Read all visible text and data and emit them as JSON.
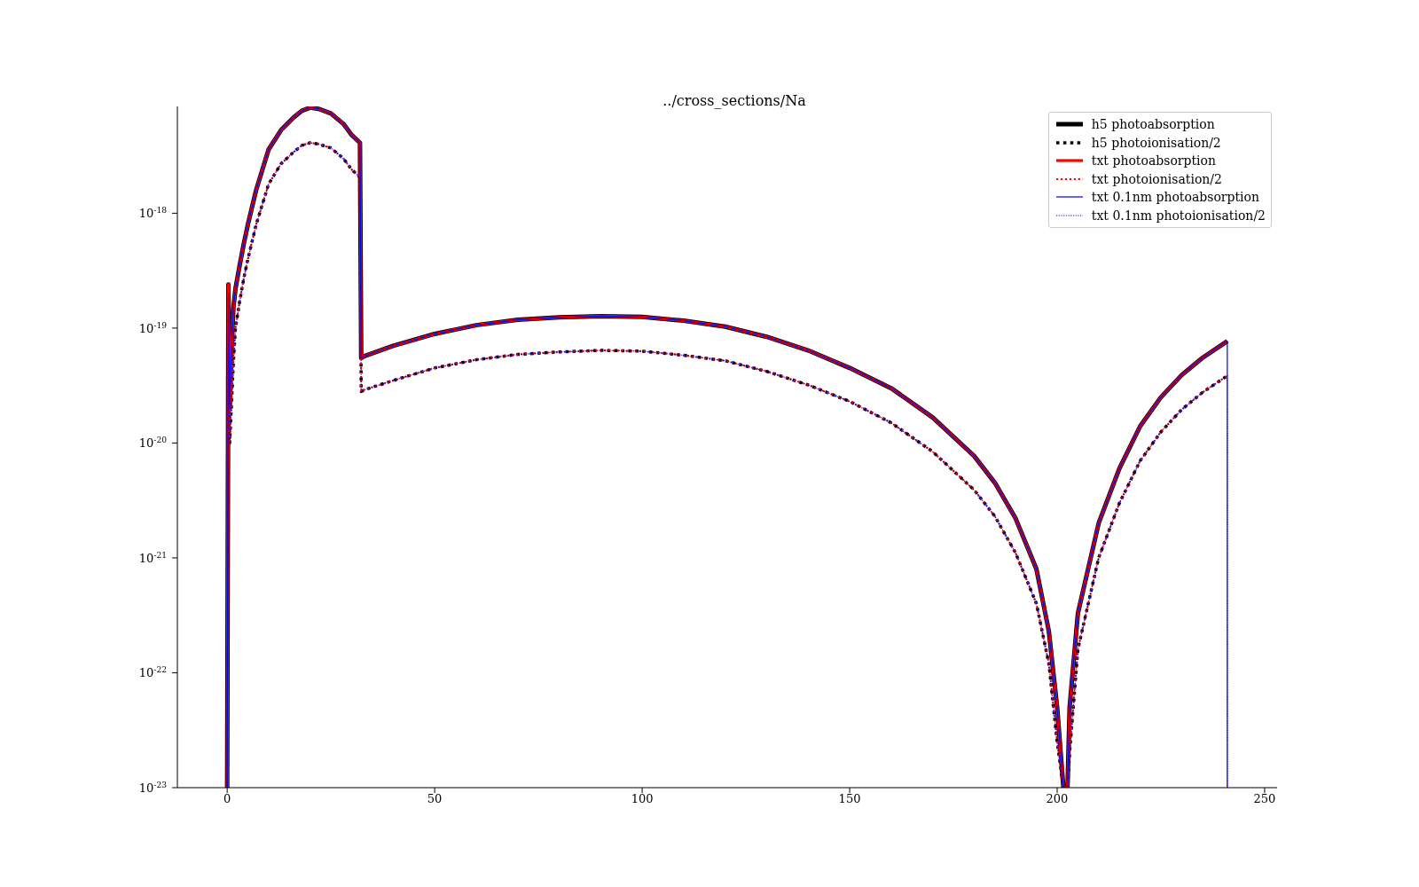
{
  "chart_data": {
    "type": "line",
    "title": "../cross_sections/Na",
    "xlim": [
      -12,
      253
    ],
    "xticks": [
      0,
      50,
      100,
      150,
      200,
      250
    ],
    "ylim": [
      1e-23,
      8.5e-18
    ],
    "yticks": [
      {
        "value": 1e-23,
        "label": "10$^{-23}$"
      },
      {
        "value": 1e-22,
        "label": "10$^{-22}$"
      },
      {
        "value": 1e-21,
        "label": "10$^{-21}$"
      },
      {
        "value": 1e-20,
        "label": "10$^{-20}$"
      },
      {
        "value": 1e-19,
        "label": "10$^{-19}$"
      },
      {
        "value": 1e-18,
        "label": "10$^{-18}$"
      }
    ],
    "log": "y",
    "grid": false,
    "legend": "top right",
    "marker": "none",
    "series": [
      {
        "name": "h5 photoabsorption",
        "color": "#000000",
        "line_style": "solid",
        "x": [
          0,
          0.3,
          0.6,
          1,
          1.5,
          2,
          3,
          4,
          5,
          7,
          10,
          13,
          16,
          18,
          20,
          22,
          25,
          28,
          30,
          32,
          32.3,
          33,
          40,
          50,
          60,
          70,
          80,
          90,
          100,
          110,
          120,
          130,
          140,
          150,
          160,
          170,
          180,
          185,
          190,
          195,
          198,
          200,
          201.5,
          202.5,
          203,
          205,
          210,
          215,
          220,
          225,
          230,
          235,
          241
        ],
        "values": [
          1e-23,
          2.4e-19,
          2e-20,
          6e-20,
          1.5e-19,
          2.2e-19,
          3.5e-19,
          5.4e-19,
          8e-19,
          1.6e-18,
          3.6e-18,
          5.3e-18,
          6.8e-18,
          7.8e-18,
          8.3e-18,
          8.1e-18,
          7.4e-18,
          6e-18,
          4.8e-18,
          4.1e-18,
          5.5e-20,
          5.7e-20,
          7e-20,
          8.9e-20,
          1.06e-19,
          1.18e-19,
          1.24e-19,
          1.27e-19,
          1.25e-19,
          1.16e-19,
          1.03e-19,
          8.4e-20,
          6.4e-20,
          4.5e-20,
          3e-20,
          1.67e-20,
          7.7e-21,
          4.5e-21,
          2.2e-21,
          8e-22,
          2.3e-22,
          5e-23,
          1e-23,
          1e-23,
          5e-23,
          3.3e-22,
          2e-21,
          6e-21,
          1.4e-20,
          2.5e-20,
          3.9e-20,
          5.5e-20,
          7.7e-20
        ]
      },
      {
        "name": "h5 photoionisation/2",
        "color": "#000000",
        "line_style": "dotted",
        "x": [
          0,
          0.3,
          0.6,
          1,
          1.5,
          2,
          3,
          4,
          5,
          7,
          10,
          13,
          16,
          18,
          20,
          22,
          25,
          28,
          30,
          32,
          32.3,
          33,
          40,
          50,
          60,
          70,
          80,
          90,
          100,
          110,
          120,
          130,
          140,
          150,
          160,
          170,
          180,
          185,
          190,
          195,
          198,
          200,
          201.5,
          202.5,
          203,
          205,
          210,
          215,
          220,
          225,
          230,
          235,
          241
        ],
        "values": [
          1e-23,
          8e-20,
          1e-20,
          2e-20,
          5e-20,
          1e-19,
          1.7e-19,
          2.7e-19,
          4e-19,
          8e-19,
          1.8e-18,
          2.7e-18,
          3.4e-18,
          3.9e-18,
          4.1e-18,
          4e-18,
          3.7e-18,
          3e-18,
          2.4e-18,
          2.05e-18,
          2.8e-20,
          2.9e-20,
          3.5e-20,
          4.5e-20,
          5.3e-20,
          5.9e-20,
          6.2e-20,
          6.4e-20,
          6.3e-20,
          5.8e-20,
          5.2e-20,
          4.2e-20,
          3.2e-20,
          2.3e-20,
          1.5e-20,
          8.4e-21,
          3.9e-21,
          2.3e-21,
          1.1e-21,
          4e-22,
          1.2e-22,
          2.5e-23,
          1e-23,
          1e-23,
          2e-23,
          1.6e-22,
          1e-21,
          3e-21,
          7e-21,
          1.25e-20,
          1.95e-20,
          2.75e-20,
          3.85e-20
        ]
      },
      {
        "name": "txt photoabsorption",
        "color": "#ff0000",
        "line_style": "solid",
        "x": [
          0,
          0.3,
          0.6,
          1,
          1.5,
          2,
          3,
          4,
          5,
          7,
          10,
          13,
          16,
          18,
          20,
          22,
          25,
          28,
          30,
          32,
          32.3,
          33,
          40,
          50,
          60,
          70,
          80,
          90,
          100,
          110,
          120,
          130,
          140,
          150,
          160,
          170,
          180,
          185,
          190,
          195,
          198,
          200,
          201.5,
          202.5,
          203,
          205,
          210,
          215,
          220,
          225,
          230,
          235,
          241
        ],
        "values": [
          1e-23,
          2.4e-19,
          2e-20,
          6e-20,
          1.5e-19,
          2.2e-19,
          3.5e-19,
          5.4e-19,
          8e-19,
          1.6e-18,
          3.6e-18,
          5.3e-18,
          6.8e-18,
          7.8e-18,
          8.3e-18,
          8.1e-18,
          7.4e-18,
          6e-18,
          4.8e-18,
          4.1e-18,
          5.5e-20,
          5.7e-20,
          7e-20,
          8.9e-20,
          1.06e-19,
          1.18e-19,
          1.24e-19,
          1.27e-19,
          1.25e-19,
          1.16e-19,
          1.03e-19,
          8.4e-20,
          6.4e-20,
          4.5e-20,
          3e-20,
          1.67e-20,
          7.7e-21,
          4.5e-21,
          2.2e-21,
          8e-22,
          2.3e-22,
          5e-23,
          1e-23,
          1e-23,
          5e-23,
          3.3e-22,
          2e-21,
          6e-21,
          1.4e-20,
          2.5e-20,
          3.9e-20,
          5.5e-20,
          7.7e-20
        ]
      },
      {
        "name": "txt photoionisation/2",
        "color": "#ff0000",
        "line_style": "dotted",
        "x": [
          0,
          0.3,
          0.6,
          1,
          1.5,
          2,
          3,
          4,
          5,
          7,
          10,
          13,
          16,
          18,
          20,
          22,
          25,
          28,
          30,
          32,
          32.3,
          33,
          40,
          50,
          60,
          70,
          80,
          90,
          100,
          110,
          120,
          130,
          140,
          150,
          160,
          170,
          180,
          185,
          190,
          195,
          198,
          200,
          201.5,
          202.5,
          203,
          205,
          210,
          215,
          220,
          225,
          230,
          235,
          241
        ],
        "values": [
          1e-23,
          8e-20,
          1e-20,
          2e-20,
          5e-20,
          1e-19,
          1.7e-19,
          2.7e-19,
          4e-19,
          8e-19,
          1.8e-18,
          2.7e-18,
          3.4e-18,
          3.9e-18,
          4.1e-18,
          4e-18,
          3.7e-18,
          3e-18,
          2.4e-18,
          2.05e-18,
          2.8e-20,
          2.9e-20,
          3.5e-20,
          4.5e-20,
          5.3e-20,
          5.9e-20,
          6.2e-20,
          6.4e-20,
          6.3e-20,
          5.8e-20,
          5.2e-20,
          4.2e-20,
          3.2e-20,
          2.3e-20,
          1.5e-20,
          8.4e-21,
          3.9e-21,
          2.3e-21,
          1.1e-21,
          4e-22,
          1.2e-22,
          2.5e-23,
          1e-23,
          1e-23,
          2e-23,
          1.6e-22,
          1e-21,
          3e-21,
          7e-21,
          1.25e-20,
          1.95e-20,
          2.75e-20,
          3.85e-20
        ]
      },
      {
        "name": "txt 0.1nm photoabsorption",
        "color": "#0000ff",
        "line_style": "solid",
        "x": [
          0,
          0.3,
          0.6,
          1,
          1.5,
          2,
          3,
          4,
          5,
          7,
          10,
          13,
          16,
          18,
          20,
          22,
          25,
          28,
          30,
          32,
          32.3,
          33,
          40,
          50,
          60,
          70,
          80,
          90,
          100,
          110,
          120,
          130,
          140,
          150,
          160,
          170,
          180,
          185,
          190,
          195,
          198,
          200,
          201.5,
          202.5,
          203,
          205,
          210,
          215,
          220,
          225,
          230,
          235,
          241,
          241
        ],
        "values": [
          1e-23,
          2e-19,
          2e-20,
          6e-20,
          1.5e-19,
          2.2e-19,
          3.5e-19,
          5.4e-19,
          8e-19,
          1.6e-18,
          3.6e-18,
          5.3e-18,
          6.8e-18,
          7.8e-18,
          8.3e-18,
          8.1e-18,
          7.4e-18,
          6e-18,
          4.8e-18,
          4.1e-18,
          5.5e-20,
          5.7e-20,
          7e-20,
          8.9e-20,
          1.06e-19,
          1.18e-19,
          1.24e-19,
          1.27e-19,
          1.25e-19,
          1.16e-19,
          1.03e-19,
          8.4e-20,
          6.4e-20,
          4.5e-20,
          3e-20,
          1.67e-20,
          7.7e-21,
          4.5e-21,
          2.2e-21,
          8e-22,
          2.3e-22,
          5e-23,
          1e-23,
          1e-23,
          5e-23,
          3.3e-22,
          2e-21,
          6e-21,
          1.4e-20,
          2.5e-20,
          3.9e-20,
          5.5e-20,
          7.7e-20,
          1e-23
        ]
      },
      {
        "name": "txt 0.1nm photoionisation/2",
        "color": "#0000ff",
        "line_style": "dotted",
        "x": [
          0,
          0.3,
          0.6,
          1,
          1.5,
          2,
          3,
          4,
          5,
          7,
          10,
          13,
          16,
          18,
          20,
          22,
          25,
          28,
          30,
          32,
          32.3,
          33,
          40,
          50,
          60,
          70,
          80,
          90,
          100,
          110,
          120,
          130,
          140,
          150,
          160,
          170,
          180,
          185,
          190,
          195,
          198,
          200,
          201.5,
          202.5,
          203,
          205,
          210,
          215,
          220,
          225,
          230,
          235,
          241,
          241
        ],
        "values": [
          1e-23,
          8e-20,
          1e-20,
          2e-20,
          5e-20,
          1e-19,
          1.7e-19,
          2.7e-19,
          4e-19,
          8e-19,
          1.8e-18,
          2.7e-18,
          3.4e-18,
          3.9e-18,
          4.1e-18,
          4e-18,
          3.7e-18,
          3e-18,
          2.4e-18,
          2.05e-18,
          2.8e-20,
          2.9e-20,
          3.5e-20,
          4.5e-20,
          5.3e-20,
          5.9e-20,
          6.2e-20,
          6.4e-20,
          6.3e-20,
          5.8e-20,
          5.2e-20,
          4.2e-20,
          3.2e-20,
          2.3e-20,
          1.5e-20,
          8.4e-21,
          3.9e-21,
          2.3e-21,
          1.1e-21,
          4e-22,
          1.2e-22,
          2.5e-23,
          1e-23,
          1e-23,
          2e-23,
          1.6e-22,
          1e-21,
          3e-21,
          7e-21,
          1.25e-20,
          1.95e-20,
          2.75e-20,
          3.85e-20,
          1e-23
        ]
      }
    ]
  }
}
